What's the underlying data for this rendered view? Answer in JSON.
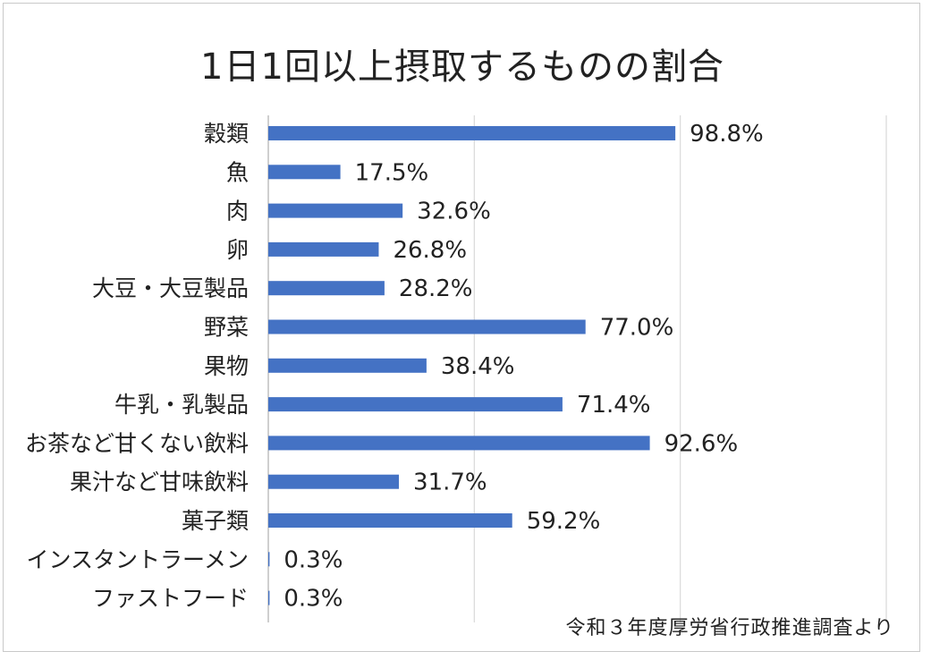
{
  "chart_data": {
    "type": "bar",
    "orientation": "horizontal",
    "title": "1日1回以上摂取するものの割合",
    "categories": [
      "穀類",
      "魚",
      "肉",
      "卵",
      "大豆・大豆製品",
      "野菜",
      "果物",
      "牛乳・乳製品",
      "お茶など甘くない飲料",
      "果汁など甘味飲料",
      "菓子類",
      "インスタントラーメン",
      "ファストフード"
    ],
    "values": [
      98.8,
      17.5,
      32.6,
      26.8,
      28.2,
      77.0,
      38.4,
      71.4,
      92.6,
      31.7,
      59.2,
      0.3,
      0.3
    ],
    "value_labels": [
      "98.8%",
      "17.5%",
      "32.6%",
      "26.8%",
      "28.2%",
      "77.0%",
      "38.4%",
      "71.4%",
      "92.6%",
      "31.7%",
      "59.2%",
      "0.3%",
      "0.3%"
    ],
    "xlim": [
      0,
      150
    ],
    "grid": true,
    "bar_color": "#4472C4",
    "grid_color": "#d9d9d9"
  },
  "source_note": "令和３年度厚労省行政推進調査より"
}
